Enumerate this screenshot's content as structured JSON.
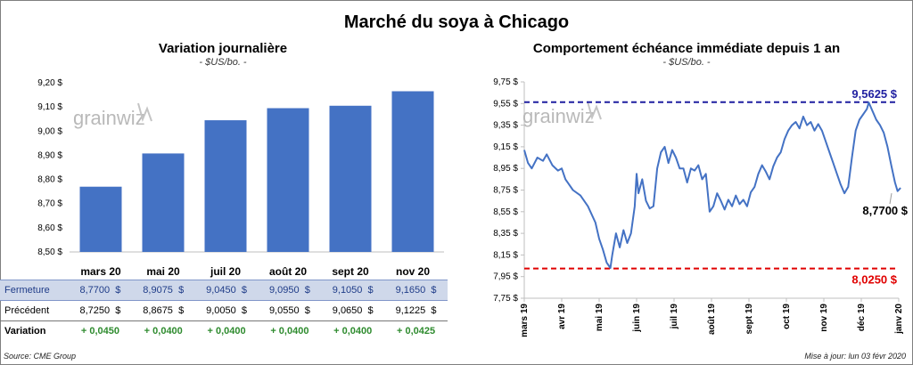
{
  "page": {
    "title": "Marché du soya à Chicago",
    "source": "Source: CME Group",
    "updated": "Mise à jour: lun 03 févr 2020",
    "watermark": "grainwiz",
    "colors": {
      "bar": "#4472c4",
      "line": "#4472c4",
      "high": "#1f1fa0",
      "low": "#e00000",
      "close_row": "#cfd8ea",
      "positive": "#2e8b2e"
    }
  },
  "chart_data": [
    {
      "type": "bar",
      "title": "Variation journalière",
      "subtitle": "- $US/bo. -",
      "categories": [
        "mars 20",
        "mai 20",
        "juil 20",
        "août 20",
        "sept 20",
        "nov 20"
      ],
      "values": [
        8.77,
        8.9075,
        9.045,
        9.095,
        9.105,
        9.165
      ],
      "ylim": [
        8.5,
        9.2
      ],
      "yticks": [
        "8,50 $",
        "8,60 $",
        "8,70 $",
        "8,80 $",
        "8,90 $",
        "9,00 $",
        "9,10 $",
        "9,20 $"
      ],
      "table": {
        "rows": [
          {
            "label": "Fermeture",
            "values": [
              "8,7700",
              "8,9075",
              "9,0450",
              "9,0950",
              "9,1050",
              "9,1650"
            ],
            "unit": "$"
          },
          {
            "label": "Précédent",
            "values": [
              "8,7250",
              "8,8675",
              "9,0050",
              "9,0550",
              "9,0650",
              "9,1225"
            ],
            "unit": "$"
          },
          {
            "label": "Variation",
            "values": [
              "+ 0,0450",
              "+ 0,0400",
              "+ 0,0400",
              "+ 0,0400",
              "+ 0,0400",
              "+ 0,0425"
            ]
          }
        ]
      }
    },
    {
      "type": "line",
      "title": "Comportement échéance immédiate depuis 1 an",
      "subtitle": "- $US/bo. -",
      "ylim": [
        7.75,
        9.75
      ],
      "yticks": [
        "7,75 $",
        "7,95 $",
        "8,15 $",
        "8,35 $",
        "8,55 $",
        "8,75 $",
        "8,95 $",
        "9,15 $",
        "9,35 $",
        "9,55 $",
        "9,75 $"
      ],
      "xticks": [
        "mars 19",
        "avr 19",
        "mai 19",
        "juin 19",
        "juil 19",
        "août 19",
        "sept 19",
        "oct 19",
        "nov 19",
        "déc 19",
        "janv 20"
      ],
      "high": {
        "value": 9.5625,
        "label": "9,5625 $"
      },
      "low": {
        "value": 8.025,
        "label": "8,0250 $"
      },
      "last": {
        "value": 8.77,
        "label": "8,7700 $"
      },
      "series": [
        {
          "points": [
            [
              0,
              9.12
            ],
            [
              0.1,
              9.0
            ],
            [
              0.2,
              8.95
            ],
            [
              0.35,
              9.05
            ],
            [
              0.5,
              9.02
            ],
            [
              0.6,
              9.08
            ],
            [
              0.75,
              8.98
            ],
            [
              0.9,
              8.93
            ],
            [
              1.0,
              8.95
            ],
            [
              1.1,
              8.85
            ],
            [
              1.3,
              8.75
            ],
            [
              1.5,
              8.7
            ],
            [
              1.7,
              8.6
            ],
            [
              1.9,
              8.45
            ],
            [
              2.0,
              8.3
            ],
            [
              2.1,
              8.2
            ],
            [
              2.2,
              8.08
            ],
            [
              2.3,
              8.03
            ],
            [
              2.35,
              8.15
            ],
            [
              2.45,
              8.35
            ],
            [
              2.55,
              8.22
            ],
            [
              2.65,
              8.38
            ],
            [
              2.75,
              8.26
            ],
            [
              2.85,
              8.35
            ],
            [
              2.95,
              8.6
            ],
            [
              3.0,
              8.9
            ],
            [
              3.05,
              8.72
            ],
            [
              3.15,
              8.85
            ],
            [
              3.25,
              8.65
            ],
            [
              3.35,
              8.58
            ],
            [
              3.45,
              8.6
            ],
            [
              3.55,
              8.95
            ],
            [
              3.65,
              9.1
            ],
            [
              3.75,
              9.15
            ],
            [
              3.85,
              9.0
            ],
            [
              3.95,
              9.12
            ],
            [
              4.05,
              9.05
            ],
            [
              4.15,
              8.95
            ],
            [
              4.25,
              8.95
            ],
            [
              4.35,
              8.82
            ],
            [
              4.45,
              8.95
            ],
            [
              4.55,
              8.93
            ],
            [
              4.65,
              8.98
            ],
            [
              4.75,
              8.85
            ],
            [
              4.85,
              8.9
            ],
            [
              4.95,
              8.55
            ],
            [
              5.05,
              8.6
            ],
            [
              5.15,
              8.72
            ],
            [
              5.25,
              8.65
            ],
            [
              5.35,
              8.57
            ],
            [
              5.45,
              8.66
            ],
            [
              5.55,
              8.6
            ],
            [
              5.65,
              8.7
            ],
            [
              5.75,
              8.62
            ],
            [
              5.85,
              8.66
            ],
            [
              5.95,
              8.6
            ],
            [
              6.05,
              8.73
            ],
            [
              6.15,
              8.78
            ],
            [
              6.25,
              8.9
            ],
            [
              6.35,
              8.98
            ],
            [
              6.45,
              8.92
            ],
            [
              6.55,
              8.85
            ],
            [
              6.65,
              8.97
            ],
            [
              6.75,
              9.05
            ],
            [
              6.85,
              9.1
            ],
            [
              6.95,
              9.22
            ],
            [
              7.05,
              9.3
            ],
            [
              7.15,
              9.35
            ],
            [
              7.25,
              9.38
            ],
            [
              7.35,
              9.32
            ],
            [
              7.45,
              9.43
            ],
            [
              7.55,
              9.35
            ],
            [
              7.65,
              9.38
            ],
            [
              7.75,
              9.3
            ],
            [
              7.85,
              9.36
            ],
            [
              7.95,
              9.3
            ],
            [
              8.05,
              9.2
            ],
            [
              8.15,
              9.1
            ],
            [
              8.25,
              9.0
            ],
            [
              8.35,
              8.9
            ],
            [
              8.45,
              8.8
            ],
            [
              8.55,
              8.72
            ],
            [
              8.65,
              8.78
            ],
            [
              8.75,
              9.05
            ],
            [
              8.85,
              9.3
            ],
            [
              8.95,
              9.4
            ],
            [
              9.05,
              9.45
            ],
            [
              9.15,
              9.5
            ],
            [
              9.2,
              9.56
            ],
            [
              9.3,
              9.48
            ],
            [
              9.4,
              9.4
            ],
            [
              9.5,
              9.35
            ],
            [
              9.6,
              9.28
            ],
            [
              9.7,
              9.15
            ],
            [
              9.8,
              8.98
            ],
            [
              9.9,
              8.82
            ],
            [
              9.97,
              8.74
            ],
            [
              10.05,
              8.77
            ]
          ]
        }
      ]
    }
  ],
  "table_labels": {
    "unit": "$"
  }
}
